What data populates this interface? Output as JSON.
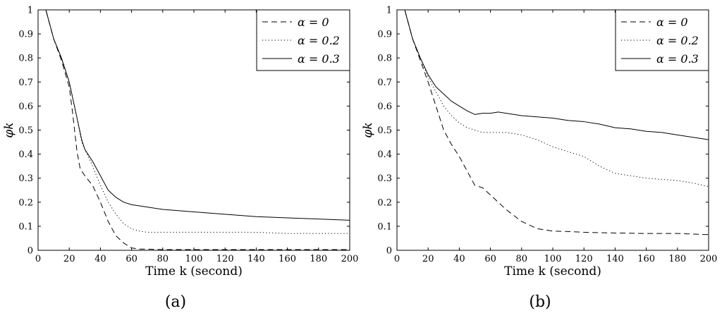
{
  "figure": {
    "panels": [
      {
        "caption": "(a)"
      },
      {
        "caption": "(b)"
      }
    ]
  },
  "chart_data": [
    {
      "type": "line",
      "panel_label": "(a)",
      "xlabel": "Time k (second)",
      "ylabel": "φk",
      "xlim": [
        0,
        200
      ],
      "ylim": [
        0,
        1
      ],
      "xticks": [
        "0",
        "20",
        "40",
        "60",
        "80",
        "100",
        "120",
        "140",
        "160",
        "180",
        "200"
      ],
      "yticks": [
        "0",
        "0.1",
        "0.2",
        "0.3",
        "0.4",
        "0.5",
        "0.6",
        "0.7",
        "0.8",
        "0.9",
        "1"
      ],
      "legend_position": "top-right",
      "grid": false,
      "series": [
        {
          "name": "α = 0",
          "style": "dashed",
          "x": [
            0,
            5,
            10,
            15,
            20,
            22,
            25,
            27,
            30,
            35,
            40,
            45,
            50,
            55,
            60,
            65,
            70,
            80,
            100,
            120,
            140,
            160,
            180,
            200
          ],
          "y": [
            1,
            1,
            0.88,
            0.79,
            0.68,
            0.58,
            0.41,
            0.34,
            0.31,
            0.27,
            0.2,
            0.12,
            0.06,
            0.03,
            0.01,
            0.005,
            0.005,
            0.003,
            0.003,
            0.003,
            0.003,
            0.003,
            0.003,
            0.003
          ]
        },
        {
          "name": "α = 0.2",
          "style": "dotted",
          "x": [
            0,
            5,
            10,
            15,
            20,
            25,
            28,
            30,
            35,
            40,
            45,
            50,
            55,
            60,
            65,
            70,
            80,
            100,
            120,
            140,
            160,
            180,
            200
          ],
          "y": [
            1,
            1,
            0.88,
            0.8,
            0.7,
            0.55,
            0.45,
            0.42,
            0.35,
            0.27,
            0.2,
            0.15,
            0.11,
            0.09,
            0.08,
            0.075,
            0.075,
            0.075,
            0.075,
            0.075,
            0.07,
            0.07,
            0.07
          ]
        },
        {
          "name": "α = 0.3",
          "style": "solid",
          "x": [
            0,
            5,
            10,
            15,
            20,
            25,
            28,
            30,
            35,
            40,
            45,
            50,
            55,
            60,
            70,
            80,
            100,
            120,
            140,
            160,
            180,
            200
          ],
          "y": [
            1,
            1,
            0.88,
            0.8,
            0.7,
            0.55,
            0.46,
            0.42,
            0.37,
            0.31,
            0.25,
            0.22,
            0.2,
            0.19,
            0.18,
            0.17,
            0.16,
            0.15,
            0.14,
            0.135,
            0.13,
            0.125
          ]
        }
      ]
    },
    {
      "type": "line",
      "panel_label": "(b)",
      "xlabel": "Time k (second)",
      "ylabel": "φk",
      "xlim": [
        0,
        200
      ],
      "ylim": [
        0,
        1
      ],
      "xticks": [
        "0",
        "20",
        "40",
        "60",
        "80",
        "100",
        "120",
        "140",
        "160",
        "180",
        "200"
      ],
      "yticks": [
        "0",
        "0.1",
        "0.2",
        "0.3",
        "0.4",
        "0.5",
        "0.6",
        "0.7",
        "0.8",
        "0.9",
        "1"
      ],
      "legend_position": "top-right",
      "grid": false,
      "series": [
        {
          "name": "α = 0",
          "style": "dashed",
          "x": [
            0,
            5,
            10,
            15,
            20,
            25,
            30,
            35,
            40,
            45,
            50,
            55,
            60,
            65,
            70,
            80,
            90,
            100,
            110,
            120,
            140,
            160,
            180,
            200
          ],
          "y": [
            1,
            1,
            0.88,
            0.79,
            0.7,
            0.6,
            0.5,
            0.44,
            0.39,
            0.33,
            0.27,
            0.26,
            0.23,
            0.2,
            0.17,
            0.12,
            0.09,
            0.08,
            0.078,
            0.075,
            0.072,
            0.07,
            0.07,
            0.065
          ]
        },
        {
          "name": "α = 0.2",
          "style": "dotted",
          "x": [
            0,
            5,
            10,
            15,
            20,
            25,
            30,
            35,
            40,
            45,
            50,
            55,
            60,
            70,
            80,
            90,
            100,
            110,
            120,
            130,
            140,
            150,
            160,
            170,
            180,
            190,
            200
          ],
          "y": [
            1,
            1,
            0.88,
            0.8,
            0.72,
            0.66,
            0.6,
            0.56,
            0.53,
            0.51,
            0.5,
            0.49,
            0.49,
            0.49,
            0.48,
            0.46,
            0.43,
            0.41,
            0.39,
            0.35,
            0.32,
            0.31,
            0.3,
            0.295,
            0.29,
            0.28,
            0.265
          ]
        },
        {
          "name": "α = 0.3",
          "style": "solid",
          "x": [
            0,
            5,
            10,
            15,
            20,
            25,
            30,
            35,
            40,
            45,
            50,
            55,
            60,
            65,
            70,
            80,
            90,
            100,
            110,
            120,
            130,
            140,
            150,
            160,
            170,
            180,
            190,
            200
          ],
          "y": [
            1,
            1,
            0.88,
            0.8,
            0.73,
            0.68,
            0.65,
            0.62,
            0.6,
            0.58,
            0.565,
            0.57,
            0.57,
            0.575,
            0.57,
            0.56,
            0.555,
            0.55,
            0.54,
            0.535,
            0.525,
            0.51,
            0.505,
            0.495,
            0.49,
            0.48,
            0.47,
            0.46
          ]
        }
      ]
    }
  ]
}
